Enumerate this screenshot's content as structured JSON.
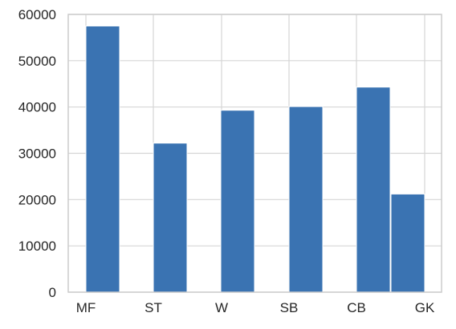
{
  "chart_data": {
    "type": "bar",
    "categories": [
      "MF",
      "ST",
      "W",
      "SB",
      "CB",
      "GK"
    ],
    "values": [
      57500,
      32200,
      39300,
      40100,
      44300,
      21200
    ],
    "ylim": [
      0,
      60000
    ],
    "yticks": [
      0,
      10000,
      20000,
      30000,
      40000,
      50000,
      60000
    ],
    "ytick_labels": [
      "0",
      "10000",
      "20000",
      "30000",
      "40000",
      "50000",
      "60000"
    ],
    "grid": true,
    "colors": {
      "bar": "#3a73b2",
      "grid": "#d6d6d6",
      "frame": "#cccccc"
    },
    "title": "",
    "xlabel": "",
    "ylabel": ""
  }
}
